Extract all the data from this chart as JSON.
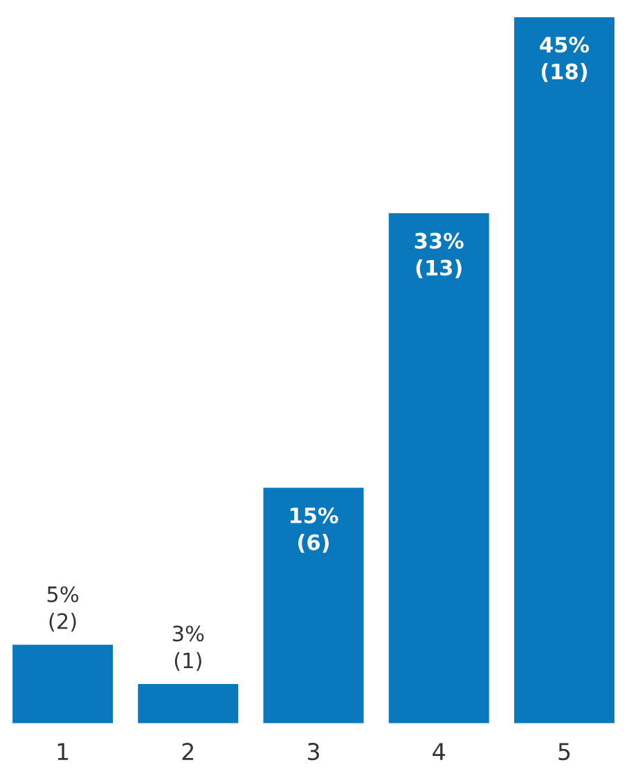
{
  "chart_data": {
    "type": "bar",
    "categories": [
      "1",
      "2",
      "3",
      "4",
      "5"
    ],
    "values": [
      2,
      1,
      6,
      13,
      18
    ],
    "color": "#0a78bd",
    "value_labels": [
      "5%\n(2)",
      "3%\n(1)",
      "15%\n(6)",
      "33%\n(13)",
      "45%\n(18)"
    ],
    "grid": false,
    "legend": false
  }
}
